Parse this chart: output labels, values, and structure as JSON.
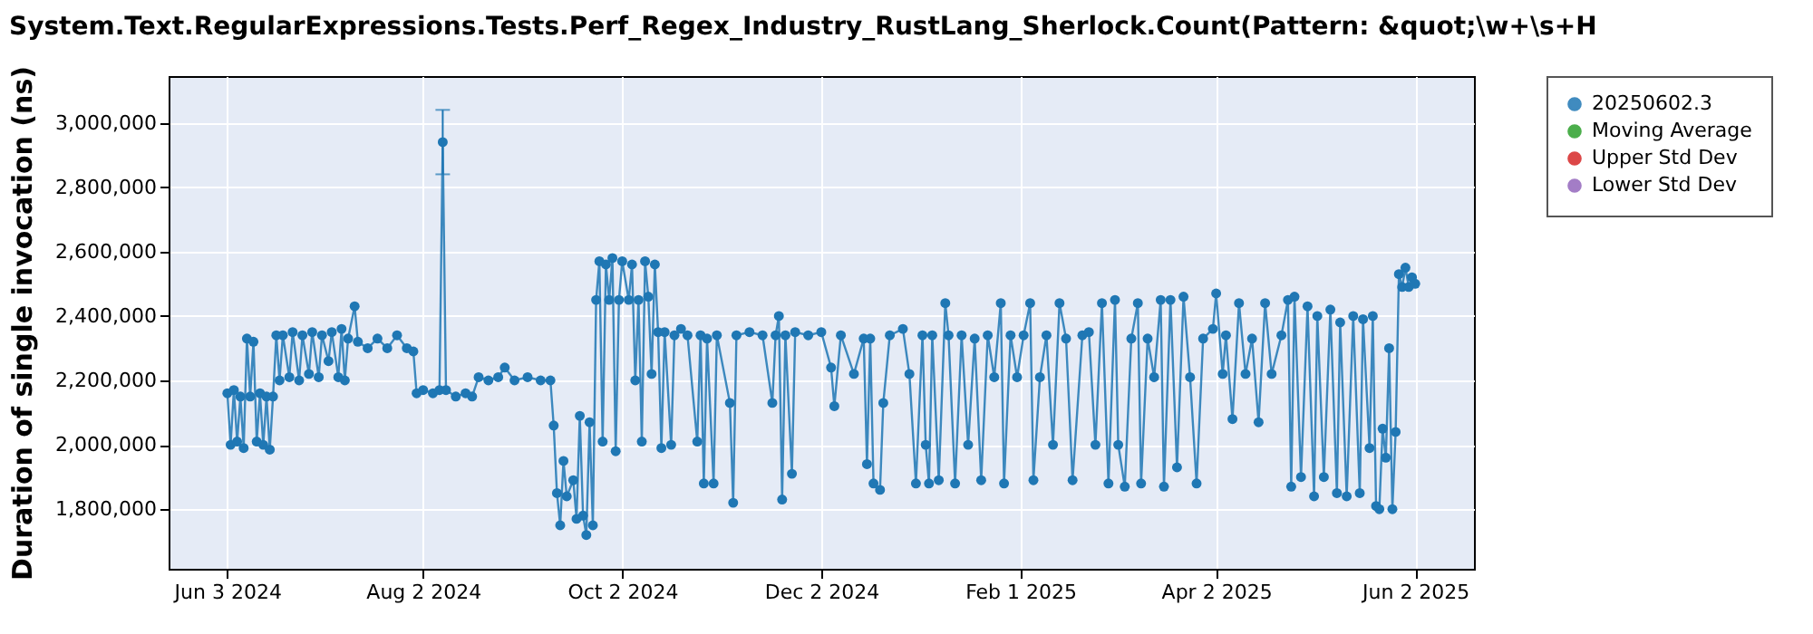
{
  "chart_data": {
    "type": "line",
    "title": "System.Text.RegularExpressions.Tests.Perf_Regex_Industry_RustLang_Sherlock.Count(Pattern: &quot;\\w+\\s+H",
    "ylabel": "Duration of single invocation (ns)",
    "x": [
      "2024-06-03",
      "2024-06-04",
      "2024-06-05",
      "2024-06-06",
      "2024-06-07",
      "2024-06-08",
      "2024-06-09",
      "2024-06-10",
      "2024-06-11",
      "2024-06-12",
      "2024-06-13",
      "2024-06-14",
      "2024-06-15",
      "2024-06-16",
      "2024-06-17",
      "2024-06-18",
      "2024-06-19",
      "2024-06-20",
      "2024-06-22",
      "2024-06-23",
      "2024-06-25",
      "2024-06-26",
      "2024-06-28",
      "2024-06-29",
      "2024-07-01",
      "2024-07-02",
      "2024-07-04",
      "2024-07-05",
      "2024-07-07",
      "2024-07-08",
      "2024-07-09",
      "2024-07-10",
      "2024-07-12",
      "2024-07-13",
      "2024-07-16",
      "2024-07-19",
      "2024-07-22",
      "2024-07-25",
      "2024-07-28",
      "2024-07-30",
      "2024-07-31",
      "2024-08-02",
      "2024-08-05",
      "2024-08-07",
      "2024-08-08",
      "2024-08-09",
      "2024-08-12",
      "2024-08-15",
      "2024-08-17",
      "2024-08-19",
      "2024-08-22",
      "2024-08-25",
      "2024-08-27",
      "2024-08-30",
      "2024-09-03",
      "2024-09-07",
      "2024-09-10",
      "2024-09-11",
      "2024-09-12",
      "2024-09-13",
      "2024-09-14",
      "2024-09-15",
      "2024-09-17",
      "2024-09-18",
      "2024-09-19",
      "2024-09-20",
      "2024-09-21",
      "2024-09-22",
      "2024-09-23",
      "2024-09-24",
      "2024-09-25",
      "2024-09-26",
      "2024-09-27",
      "2024-09-28",
      "2024-09-29",
      "2024-09-30",
      "2024-10-01",
      "2024-10-02",
      "2024-10-04",
      "2024-10-05",
      "2024-10-06",
      "2024-10-07",
      "2024-10-08",
      "2024-10-09",
      "2024-10-10",
      "2024-10-11",
      "2024-10-12",
      "2024-10-13",
      "2024-10-14",
      "2024-10-15",
      "2024-10-17",
      "2024-10-18",
      "2024-10-20",
      "2024-10-22",
      "2024-10-25",
      "2024-10-26",
      "2024-10-27",
      "2024-10-28",
      "2024-10-30",
      "2024-10-31",
      "2024-11-04",
      "2024-11-05",
      "2024-11-06",
      "2024-11-10",
      "2024-11-14",
      "2024-11-17",
      "2024-11-18",
      "2024-11-19",
      "2024-11-20",
      "2024-11-21",
      "2024-11-23",
      "2024-11-24",
      "2024-11-28",
      "2024-12-02",
      "2024-12-05",
      "2024-12-06",
      "2024-12-08",
      "2024-12-12",
      "2024-12-15",
      "2024-12-16",
      "2024-12-17",
      "2024-12-18",
      "2024-12-20",
      "2024-12-21",
      "2024-12-23",
      "2024-12-27",
      "2024-12-29",
      "2024-12-31",
      "2025-01-02",
      "2025-01-03",
      "2025-01-04",
      "2025-01-05",
      "2025-01-07",
      "2025-01-09",
      "2025-01-10",
      "2025-01-12",
      "2025-01-14",
      "2025-01-16",
      "2025-01-18",
      "2025-01-20",
      "2025-01-22",
      "2025-01-24",
      "2025-01-26",
      "2025-01-27",
      "2025-01-29",
      "2025-01-31",
      "2025-02-02",
      "2025-02-04",
      "2025-02-05",
      "2025-02-07",
      "2025-02-09",
      "2025-02-11",
      "2025-02-13",
      "2025-02-15",
      "2025-02-17",
      "2025-02-20",
      "2025-02-22",
      "2025-02-24",
      "2025-02-26",
      "2025-02-28",
      "2025-03-02",
      "2025-03-03",
      "2025-03-05",
      "2025-03-07",
      "2025-03-09",
      "2025-03-10",
      "2025-03-12",
      "2025-03-14",
      "2025-03-16",
      "2025-03-17",
      "2025-03-19",
      "2025-03-21",
      "2025-03-23",
      "2025-03-25",
      "2025-03-27",
      "2025-03-29",
      "2025-04-01",
      "2025-04-02",
      "2025-04-04",
      "2025-04-05",
      "2025-04-07",
      "2025-04-09",
      "2025-04-11",
      "2025-04-13",
      "2025-04-15",
      "2025-04-17",
      "2025-04-19",
      "2025-04-22",
      "2025-04-24",
      "2025-04-25",
      "2025-04-26",
      "2025-04-28",
      "2025-04-30",
      "2025-05-02",
      "2025-05-03",
      "2025-05-05",
      "2025-05-07",
      "2025-05-09",
      "2025-05-10",
      "2025-05-12",
      "2025-05-14",
      "2025-05-16",
      "2025-05-17",
      "2025-05-19",
      "2025-05-20",
      "2025-05-21",
      "2025-05-22",
      "2025-05-23",
      "2025-05-24",
      "2025-05-25",
      "2025-05-26",
      "2025-05-27",
      "2025-05-28",
      "2025-05-29",
      "2025-05-30",
      "2025-05-31",
      "2025-06-01",
      "2025-06-02"
    ],
    "series": [
      {
        "name": "20250602.3",
        "color": "#1f77b4",
        "values": [
          2160000,
          2000000,
          2170000,
          2010000,
          2150000,
          1990000,
          2330000,
          2150000,
          2320000,
          2010000,
          2160000,
          2000000,
          2150000,
          1985000,
          2150000,
          2340000,
          2200000,
          2340000,
          2210000,
          2350000,
          2200000,
          2340000,
          2220000,
          2350000,
          2210000,
          2340000,
          2260000,
          2350000,
          2210000,
          2360000,
          2200000,
          2330000,
          2430000,
          2320000,
          2300000,
          2330000,
          2300000,
          2340000,
          2300000,
          2290000,
          2160000,
          2170000,
          2160000,
          2170000,
          2940000,
          2170000,
          2150000,
          2160000,
          2150000,
          2210000,
          2200000,
          2210000,
          2240000,
          2200000,
          2210000,
          2200000,
          2200000,
          2060000,
          1850000,
          1750000,
          1950000,
          1840000,
          1890000,
          1770000,
          2090000,
          1780000,
          1720000,
          2070000,
          1750000,
          2450000,
          2570000,
          2010000,
          2560000,
          2450000,
          2580000,
          1980000,
          2450000,
          2570000,
          2450000,
          2560000,
          2200000,
          2450000,
          2010000,
          2570000,
          2460000,
          2220000,
          2560000,
          2350000,
          1990000,
          2350000,
          2000000,
          2340000,
          2360000,
          2340000,
          2010000,
          2340000,
          1880000,
          2330000,
          1880000,
          2340000,
          2130000,
          1820000,
          2340000,
          2350000,
          2340000,
          2130000,
          2340000,
          2400000,
          1830000,
          2340000,
          1910000,
          2350000,
          2340000,
          2350000,
          2240000,
          2120000,
          2340000,
          2220000,
          2330000,
          1940000,
          2330000,
          1880000,
          1860000,
          2130000,
          2340000,
          2360000,
          2220000,
          1880000,
          2340000,
          2000000,
          1880000,
          2340000,
          1890000,
          2440000,
          2340000,
          1880000,
          2340000,
          2000000,
          2330000,
          1890000,
          2340000,
          2210000,
          2440000,
          1880000,
          2340000,
          2210000,
          2340000,
          2440000,
          1890000,
          2210000,
          2340000,
          2000000,
          2440000,
          2330000,
          1890000,
          2340000,
          2350000,
          2000000,
          2440000,
          1880000,
          2450000,
          2000000,
          1870000,
          2330000,
          2440000,
          1880000,
          2330000,
          2210000,
          2450000,
          1870000,
          2450000,
          1930000,
          2460000,
          2210000,
          1880000,
          2330000,
          2360000,
          2470000,
          2220000,
          2340000,
          2080000,
          2440000,
          2220000,
          2330000,
          2070000,
          2440000,
          2220000,
          2340000,
          2450000,
          1870000,
          2460000,
          1900000,
          2430000,
          1840000,
          2400000,
          1900000,
          2420000,
          1850000,
          2380000,
          1840000,
          2400000,
          1850000,
          2390000,
          1990000,
          2400000,
          1810000,
          1800000,
          2050000,
          1960000,
          2300000,
          1800000,
          2040000,
          2530000,
          2490000,
          2550000,
          2490000,
          2520000,
          2500000
        ],
        "errors": [
          null,
          null,
          null,
          null,
          null,
          null,
          null,
          null,
          null,
          null,
          null,
          null,
          null,
          null,
          null,
          null,
          null,
          null,
          null,
          null,
          null,
          null,
          null,
          null,
          null,
          null,
          null,
          null,
          null,
          null,
          null,
          null,
          null,
          null,
          null,
          null,
          null,
          null,
          null,
          null,
          null,
          null,
          null,
          null,
          [
            2840000,
            3040000
          ],
          null,
          null,
          null,
          null,
          null,
          null,
          null,
          null,
          null,
          null,
          null,
          null,
          null,
          null,
          null,
          null,
          null,
          null,
          null,
          null,
          null,
          null,
          null,
          null,
          null,
          null,
          null,
          null,
          null,
          null,
          null,
          null,
          null,
          null,
          null,
          null,
          null,
          null,
          null,
          null,
          null,
          null,
          null,
          null,
          null,
          null,
          null,
          null,
          null,
          null,
          null,
          null,
          null,
          null,
          null,
          null,
          null,
          null,
          null,
          null,
          null,
          null,
          null,
          null,
          null,
          null,
          null,
          null,
          null,
          null,
          null,
          null,
          null,
          null,
          null,
          null,
          null,
          null,
          null,
          null,
          null,
          null,
          null,
          null,
          null,
          null,
          null,
          null,
          null,
          null,
          null,
          null,
          null,
          null,
          null,
          null,
          null,
          null,
          null,
          null,
          null,
          null,
          null,
          null,
          null,
          null,
          null,
          null,
          null,
          null,
          null,
          null,
          null,
          null,
          null,
          null,
          null,
          null,
          null,
          null,
          null,
          null,
          null,
          null,
          null,
          null,
          null,
          null,
          null,
          null,
          null,
          null,
          null,
          null,
          null,
          null,
          null,
          null,
          null,
          null,
          null,
          null,
          null,
          null,
          null,
          null,
          null,
          null,
          null,
          null,
          null,
          null,
          null,
          null,
          null,
          null,
          null,
          null,
          null,
          null,
          null,
          null,
          null,
          null,
          null,
          null,
          null,
          null,
          null,
          null,
          null,
          null,
          null
        ]
      },
      {
        "name": "Moving Average",
        "color": "#2ca02c",
        "values": [
          null,
          null,
          null,
          null,
          null,
          null,
          null,
          null,
          null,
          null,
          null,
          null,
          null,
          null,
          null,
          null,
          null,
          null,
          null,
          null,
          null,
          null,
          null,
          null,
          null,
          null,
          null,
          null,
          null,
          null,
          null,
          null,
          null,
          null,
          null,
          null,
          null,
          null,
          null,
          null,
          null,
          null,
          null,
          null,
          null,
          null,
          null,
          null,
          null,
          null,
          null,
          null,
          null,
          null,
          null,
          null,
          null,
          null,
          null,
          null,
          null,
          null,
          null,
          null,
          null,
          null,
          null,
          null,
          null,
          null,
          null,
          null,
          null,
          null,
          null,
          null,
          null,
          null,
          null,
          null,
          null,
          null,
          null,
          null,
          null,
          null,
          null,
          null,
          null,
          null,
          null,
          null,
          null,
          null,
          null,
          null,
          null,
          null,
          null,
          null,
          null,
          null,
          null,
          null,
          null,
          null,
          null,
          null,
          null,
          null,
          null,
          null,
          null,
          null,
          null,
          null,
          null,
          null,
          null,
          null,
          null,
          null,
          null,
          null,
          null,
          null,
          null,
          null,
          null,
          null,
          null,
          null,
          null,
          null,
          null,
          null,
          null,
          null,
          null,
          null,
          null,
          null,
          null,
          null,
          null,
          null,
          null,
          null,
          null,
          null,
          null,
          null,
          null,
          null,
          null,
          null,
          null,
          null,
          null,
          null,
          null,
          null,
          null,
          null,
          null,
          null,
          null,
          null,
          null,
          null,
          null,
          null,
          null,
          null,
          null,
          null,
          null,
          null,
          null,
          null,
          null,
          null,
          null,
          null,
          null,
          null,
          null,
          null,
          null,
          null,
          null,
          null,
          null,
          null,
          null,
          null,
          null,
          null,
          null,
          null,
          null,
          null,
          null,
          null,
          null,
          null,
          null,
          null,
          null,
          null,
          null,
          null,
          null,
          null,
          null,
          null,
          null,
          null
        ]
      },
      {
        "name": "Upper Std Dev",
        "color": "#d62728",
        "values": [
          null,
          null,
          null,
          null,
          null,
          null,
          null,
          null,
          null,
          null,
          null,
          null,
          null,
          null,
          null,
          null,
          null,
          null,
          null,
          null,
          null,
          null,
          null,
          null,
          null,
          null,
          null,
          null,
          null,
          null,
          null,
          null,
          null,
          null,
          null,
          null,
          null,
          null,
          null,
          null,
          null,
          null,
          null,
          null,
          null,
          null,
          null,
          null,
          null,
          null,
          null,
          null,
          null,
          null,
          null,
          null,
          null,
          null,
          null,
          null,
          null,
          null,
          null,
          null,
          null,
          null,
          null,
          null,
          null,
          null,
          null,
          null,
          null,
          null,
          null,
          null,
          null,
          null,
          null,
          null,
          null,
          null,
          null,
          null,
          null,
          null,
          null,
          null,
          null,
          null,
          null,
          null,
          null,
          null,
          null,
          null,
          null,
          null,
          null,
          null,
          null,
          null,
          null,
          null,
          null,
          null,
          null,
          null,
          null,
          null,
          null,
          null,
          null,
          null,
          null,
          null,
          null,
          null,
          null,
          null,
          null,
          null,
          null,
          null,
          null,
          null,
          null,
          null,
          null,
          null,
          null,
          null,
          null,
          null,
          null,
          null,
          null,
          null,
          null,
          null,
          null,
          null,
          null,
          null,
          null,
          null,
          null,
          null,
          null,
          null,
          null,
          null,
          null,
          null,
          null,
          null,
          null,
          null,
          null,
          null,
          null,
          null,
          null,
          null,
          null,
          null,
          null,
          null,
          null,
          null,
          null,
          null,
          null,
          null,
          null,
          null,
          null,
          null,
          null,
          null,
          null,
          null,
          null,
          null,
          null,
          null,
          null,
          null,
          null,
          null,
          null,
          null,
          null,
          null,
          null,
          null,
          null,
          null,
          null,
          null,
          null,
          null,
          null,
          null,
          null,
          null,
          null,
          null,
          null,
          null,
          null,
          null,
          null,
          null,
          null,
          null,
          null,
          null
        ]
      },
      {
        "name": "Lower Std Dev",
        "color": "#9467bd",
        "values": [
          null,
          null,
          null,
          null,
          null,
          null,
          null,
          null,
          null,
          null,
          null,
          null,
          null,
          null,
          null,
          null,
          null,
          null,
          null,
          null,
          null,
          null,
          null,
          null,
          null,
          null,
          null,
          null,
          null,
          null,
          null,
          null,
          null,
          null,
          null,
          null,
          null,
          null,
          null,
          null,
          null,
          null,
          null,
          null,
          null,
          null,
          null,
          null,
          null,
          null,
          null,
          null,
          null,
          null,
          null,
          null,
          null,
          null,
          null,
          null,
          null,
          null,
          null,
          null,
          null,
          null,
          null,
          null,
          null,
          null,
          null,
          null,
          null,
          null,
          null,
          null,
          null,
          null,
          null,
          null,
          null,
          null,
          null,
          null,
          null,
          null,
          null,
          null,
          null,
          null,
          null,
          null,
          null,
          null,
          null,
          null,
          null,
          null,
          null,
          null,
          null,
          null,
          null,
          null,
          null,
          null,
          null,
          null,
          null,
          null,
          null,
          null,
          null,
          null,
          null,
          null,
          null,
          null,
          null,
          null,
          null,
          null,
          null,
          null,
          null,
          null,
          null,
          null,
          null,
          null,
          null,
          null,
          null,
          null,
          null,
          null,
          null,
          null,
          null,
          null,
          null,
          null,
          null,
          null,
          null,
          null,
          null,
          null,
          null,
          null,
          null,
          null,
          null,
          null,
          null,
          null,
          null,
          null,
          null,
          null,
          null,
          null,
          null,
          null,
          null,
          null,
          null,
          null,
          null,
          null,
          null,
          null,
          null,
          null,
          null,
          null,
          null,
          null,
          null,
          null,
          null,
          null,
          null,
          null,
          null,
          null,
          null,
          null,
          null,
          null,
          null,
          null,
          null,
          null,
          null,
          null,
          null,
          null,
          null,
          null,
          null,
          null,
          null,
          null,
          null,
          null,
          null,
          null,
          null,
          null,
          null,
          null,
          null,
          null,
          null,
          null,
          null,
          null
        ]
      }
    ],
    "xlim": [
      "2024-05-16",
      "2025-06-20"
    ],
    "xticks": [
      {
        "value": "2024-06-03",
        "label": "Jun 3 2024"
      },
      {
        "value": "2024-08-02",
        "label": "Aug 2 2024"
      },
      {
        "value": "2024-10-02",
        "label": "Oct 2 2024"
      },
      {
        "value": "2024-12-02",
        "label": "Dec 2 2024"
      },
      {
        "value": "2025-02-01",
        "label": "Feb 1 2025"
      },
      {
        "value": "2025-04-02",
        "label": "Apr 2 2025"
      },
      {
        "value": "2025-06-02",
        "label": "Jun 2 2025"
      }
    ],
    "ylim": [
      1615000,
      3145000
    ],
    "yticks": [
      {
        "value": 1800000,
        "label": "1,800,000"
      },
      {
        "value": 2000000,
        "label": "2,000,000"
      },
      {
        "value": 2200000,
        "label": "2,200,000"
      },
      {
        "value": 2400000,
        "label": "2,400,000"
      },
      {
        "value": 2600000,
        "label": "2,600,000"
      },
      {
        "value": 2800000,
        "label": "2,800,000"
      },
      {
        "value": 3000000,
        "label": "3,000,000"
      }
    ],
    "grid": true,
    "legend": "right",
    "marker": "circle",
    "line_style": "solid"
  }
}
